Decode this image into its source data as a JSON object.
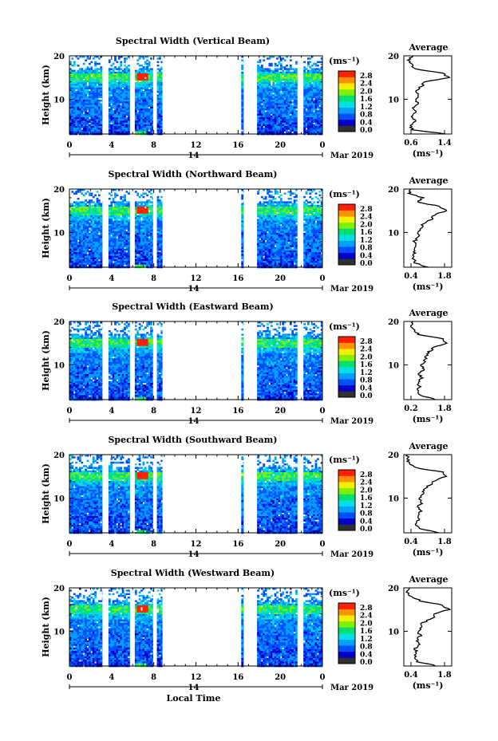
{
  "figure": {
    "x_label": "Local Time",
    "day_label": "14",
    "month_label": "Mar 2019",
    "y_label": "Height (km)",
    "unit_label": "(ms⁻¹)",
    "avg_unit_label": "(ms⁻¹)",
    "avg_title": "Average",
    "x_ticks": [
      "0",
      "4",
      "8",
      "12",
      "16",
      "20",
      "0"
    ],
    "y_ticks": [
      "20",
      "10"
    ],
    "colorbar_ticks": [
      "2.8",
      "2.4",
      "2.0",
      "1.6",
      "1.2",
      "0.8",
      "0.4",
      "0.0"
    ],
    "colors": {
      "colormap": [
        "#303030",
        "#0000c8",
        "#0050ff",
        "#00a0ff",
        "#00e0e0",
        "#00e070",
        "#80f000",
        "#f0f000",
        "#ff9000",
        "#ff2000"
      ]
    }
  },
  "chart_data": [
    {
      "type": "heatmap",
      "title": "Spectral Width (Vertical Beam)",
      "xlabel": "Local Time",
      "ylabel": "Height (km)",
      "xlim": [
        0,
        24
      ],
      "ylim": [
        2,
        20
      ],
      "data_intervals_h": [
        [
          0,
          3.1
        ],
        [
          3.7,
          5.7
        ],
        [
          6.2,
          7.9
        ],
        [
          8.3,
          8.8
        ],
        [
          16.3,
          16.5
        ],
        [
          17.8,
          21.6
        ],
        [
          22.2,
          24
        ]
      ],
      "colorbar_range": [
        0.0,
        2.8
      ],
      "avg": {
        "xticks": [
          "0.6",
          "1.4"
        ],
        "xlim": [
          0.6,
          1.4
        ],
        "height_km": [
          2,
          3,
          4,
          5,
          6,
          7,
          8,
          9,
          10,
          11,
          12,
          13,
          14,
          15,
          16,
          17,
          18,
          19,
          20
        ],
        "value": [
          1.3,
          0.75,
          0.7,
          0.78,
          0.72,
          0.8,
          0.76,
          0.84,
          0.78,
          0.86,
          0.8,
          0.9,
          0.95,
          1.35,
          1.25,
          0.78,
          0.72,
          0.68,
          0.75
        ]
      }
    },
    {
      "type": "heatmap",
      "title": "Spectral Width (Northward Beam)",
      "xlabel": "Local Time",
      "ylabel": "Height (km)",
      "xlim": [
        0,
        24
      ],
      "ylim": [
        2,
        20
      ],
      "data_intervals_h": [
        [
          0,
          3.1
        ],
        [
          3.7,
          5.7
        ],
        [
          6.2,
          7.9
        ],
        [
          8.3,
          8.8
        ],
        [
          16.3,
          16.5
        ],
        [
          17.8,
          21.6
        ],
        [
          22.2,
          24
        ]
      ],
      "colorbar_range": [
        0.0,
        2.8
      ],
      "avg": {
        "xticks": [
          "0.4",
          "1.8"
        ],
        "xlim": [
          0.4,
          1.8
        ],
        "height_km": [
          2,
          3,
          4,
          5,
          6,
          7,
          8,
          9,
          10,
          11,
          12,
          13,
          14,
          15,
          16,
          17,
          18,
          19,
          20
        ],
        "value": [
          1.1,
          0.75,
          0.65,
          0.72,
          0.68,
          0.8,
          0.72,
          0.85,
          0.78,
          0.92,
          0.95,
          1.2,
          1.3,
          1.65,
          1.45,
          0.8,
          0.95,
          0.55,
          0.6
        ]
      }
    },
    {
      "type": "heatmap",
      "title": "Spectral Width (Eastward Beam)",
      "xlabel": "Local Time",
      "ylabel": "Height (km)",
      "xlim": [
        0,
        24
      ],
      "ylim": [
        2,
        20
      ],
      "data_intervals_h": [
        [
          0,
          3.1
        ],
        [
          3.7,
          5.7
        ],
        [
          6.2,
          7.9
        ],
        [
          8.3,
          8.8
        ],
        [
          16.3,
          16.5
        ],
        [
          17.8,
          21.6
        ],
        [
          22.2,
          24
        ]
      ],
      "colorbar_range": [
        0.0,
        2.8
      ],
      "avg": {
        "xticks": [
          "0.2",
          "1.8"
        ],
        "xlim": [
          0.2,
          1.8
        ],
        "height_km": [
          2,
          3,
          4,
          5,
          6,
          7,
          8,
          9,
          10,
          11,
          12,
          13,
          14,
          15,
          16,
          17,
          18,
          19,
          20
        ],
        "value": [
          1.25,
          0.75,
          0.65,
          0.72,
          0.68,
          0.78,
          0.72,
          0.85,
          0.78,
          0.9,
          0.95,
          1.05,
          1.2,
          1.65,
          1.5,
          0.7,
          0.55,
          0.45,
          0.5
        ]
      }
    },
    {
      "type": "heatmap",
      "title": "Spectral Width (Southward Beam)",
      "xlabel": "Local Time",
      "ylabel": "Height (km)",
      "xlim": [
        0,
        24
      ],
      "ylim": [
        2,
        20
      ],
      "data_intervals_h": [
        [
          0,
          3.1
        ],
        [
          3.7,
          5.7
        ],
        [
          6.2,
          7.9
        ],
        [
          8.3,
          8.8
        ],
        [
          16.3,
          16.5
        ],
        [
          17.8,
          21.6
        ],
        [
          22.2,
          24
        ]
      ],
      "colorbar_range": [
        0.0,
        2.8
      ],
      "avg": {
        "xticks": [
          "0.4",
          "1.8"
        ],
        "xlim": [
          0.4,
          1.8
        ],
        "height_km": [
          2,
          3,
          4,
          5,
          6,
          7,
          8,
          9,
          10,
          11,
          12,
          13,
          14,
          15,
          16,
          17,
          18,
          19,
          20
        ],
        "value": [
          1.45,
          0.85,
          0.75,
          0.82,
          0.78,
          0.88,
          0.82,
          0.92,
          0.86,
          0.95,
          1.0,
          1.15,
          1.3,
          1.6,
          1.55,
          0.75,
          0.55,
          0.5,
          0.5
        ]
      }
    },
    {
      "type": "heatmap",
      "title": "Spectral Width (Westward Beam)",
      "xlabel": "Local Time",
      "ylabel": "Height (km)",
      "xlim": [
        0,
        24
      ],
      "ylim": [
        2,
        20
      ],
      "data_intervals_h": [
        [
          0,
          3.1
        ],
        [
          3.7,
          5.7
        ],
        [
          6.2,
          7.9
        ],
        [
          8.3,
          8.8
        ],
        [
          16.3,
          16.5
        ],
        [
          17.8,
          21.6
        ],
        [
          22.2,
          24
        ]
      ],
      "colorbar_range": [
        0.0,
        2.8
      ],
      "avg": {
        "xticks": [
          "0.4",
          "1.8"
        ],
        "xlim": [
          0.4,
          1.8
        ],
        "height_km": [
          2,
          3,
          4,
          5,
          6,
          7,
          8,
          9,
          10,
          11,
          12,
          13,
          14,
          15,
          16,
          17,
          18,
          19,
          20
        ],
        "value": [
          1.35,
          0.82,
          0.72,
          0.8,
          0.74,
          0.84,
          0.78,
          0.88,
          0.8,
          0.92,
          0.95,
          1.25,
          1.3,
          1.7,
          1.55,
          0.9,
          0.6,
          0.5,
          0.55
        ]
      }
    }
  ]
}
